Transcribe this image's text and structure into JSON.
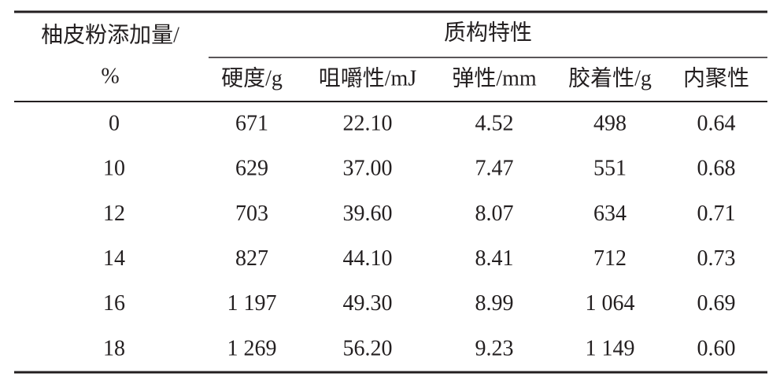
{
  "table": {
    "stub_header": [
      "柚皮粉添加量/",
      "%"
    ],
    "group_header": "质构特性",
    "columns": [
      "硬度/g",
      "咀嚼性/mJ",
      "弹性/mm",
      "胶着性/g",
      "内聚性"
    ],
    "rows": [
      [
        "0",
        "671",
        "22.10",
        "4.52",
        "498",
        "0.64"
      ],
      [
        "10",
        "629",
        "37.00",
        "7.47",
        "551",
        "0.68"
      ],
      [
        "12",
        "703",
        "39.60",
        "8.07",
        "634",
        "0.71"
      ],
      [
        "14",
        "827",
        "44.10",
        "8.41",
        "712",
        "0.73"
      ],
      [
        "16",
        "1 197",
        "49.30",
        "8.99",
        "1 064",
        "0.69"
      ],
      [
        "18",
        "1 269",
        "56.20",
        "9.23",
        "1 149",
        "0.60"
      ]
    ]
  }
}
